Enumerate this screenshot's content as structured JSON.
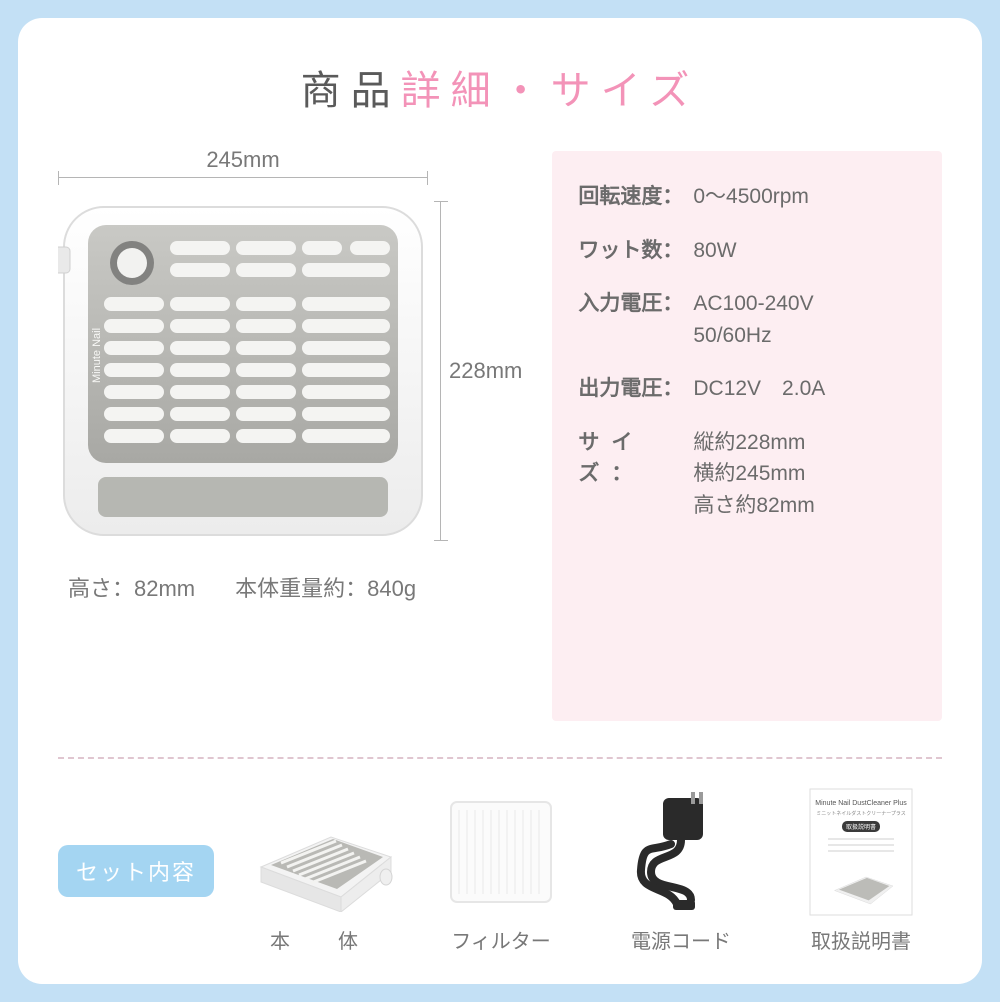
{
  "title": {
    "part1": "商品",
    "part2": "詳細・サイズ"
  },
  "dimensions": {
    "width": "245mm",
    "height": "228mm",
    "depth_label": "高さ：82mm",
    "weight_label": "本体重量約：840g"
  },
  "specs": {
    "rotation": {
      "label": "回転速度：",
      "value": "0〜4500rpm"
    },
    "watts": {
      "label": "ワット数：",
      "value": "80W"
    },
    "input": {
      "label": "入力電圧：",
      "value": "AC100-240V\n50/60Hz"
    },
    "output": {
      "label": "出力電圧：",
      "value": "DC12V　2.0A"
    },
    "size": {
      "label": "サイズ：",
      "value": "縦約228mm\n横約245mm\n高さ約82mm"
    }
  },
  "set": {
    "heading": "セット内容",
    "items": [
      {
        "name": "本　体"
      },
      {
        "name": "フィルター"
      },
      {
        "name": "電源コード"
      },
      {
        "name": "取扱説明書"
      }
    ]
  },
  "colors": {
    "page_bg": "#c3e0f5",
    "accent_pink": "#f393b8",
    "spec_bg": "#fdeef2",
    "tag_bg": "#a4d5f2",
    "text_gray": "#787878",
    "product_gray": "#b9b9b6"
  },
  "product_brand": "Minute Nail",
  "manual_title": "Minute Nail  DustCleaner Plus",
  "manual_subtitle": "ミニットネイルダストクリーナープラス",
  "manual_badge": "取扱説明書"
}
